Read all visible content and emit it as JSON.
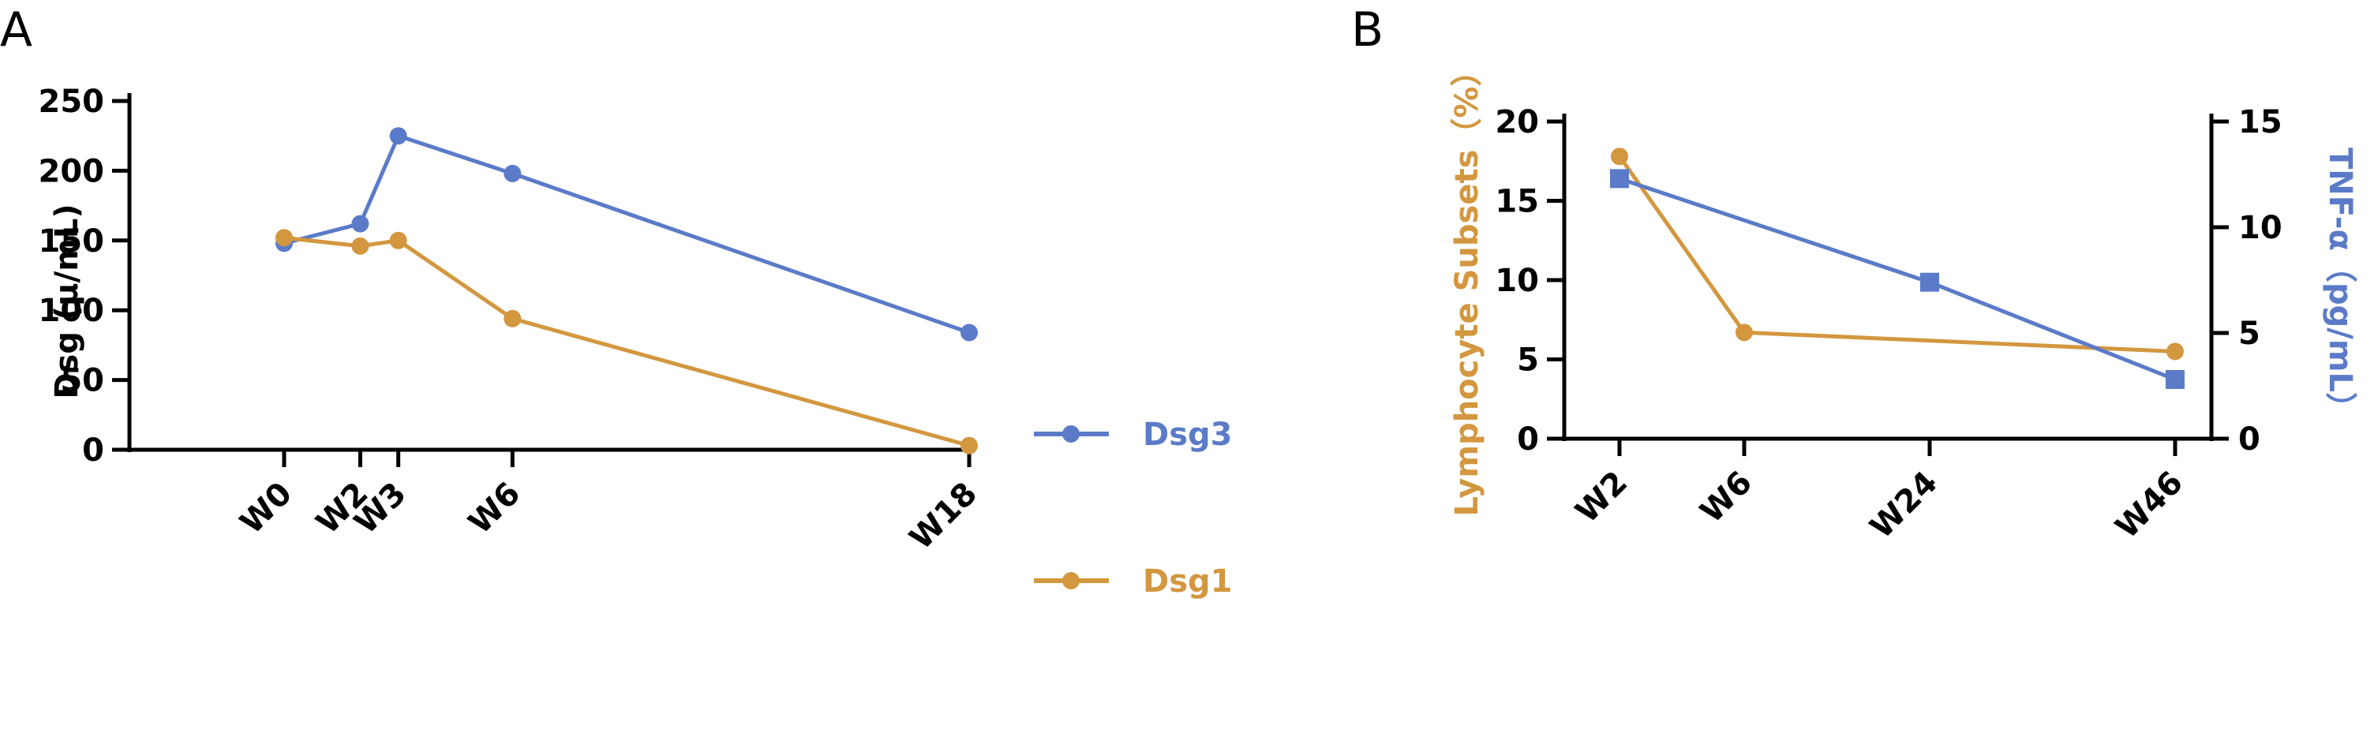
{
  "chart_data": [
    {
      "panel": "A",
      "type": "line",
      "x": [
        "W0",
        "W2",
        "W3",
        "W6",
        "W18"
      ],
      "x_weeks": [
        0,
        2,
        3,
        6,
        18
      ],
      "ylabel": "Dsg (μ/mL)",
      "ylim": [
        0,
        250
      ],
      "yticks": [
        "0",
        "50",
        "100",
        "150",
        "200",
        "250"
      ],
      "legend_placement": "right",
      "series": [
        {
          "name": "Dsg3",
          "color": "#5b7bc8",
          "marker": "circle",
          "values": [
            148,
            162,
            225,
            198,
            84
          ]
        },
        {
          "name": "Dsg1",
          "color": "#d3973f",
          "marker": "circle",
          "values": [
            152,
            146,
            150,
            94,
            3
          ]
        }
      ]
    },
    {
      "panel": "B",
      "type": "line",
      "x": [
        "W2",
        "W6",
        "W24",
        "W46"
      ],
      "ylabel_left": "Lymphocyte Subsets（%）",
      "ylabel_right": "TNF-α（pg/mL）",
      "ylim_left": [
        0,
        20
      ],
      "ylim_right": [
        0,
        15
      ],
      "yticks_left": [
        "0",
        "5",
        "10",
        "15",
        "20"
      ],
      "yticks_right": [
        "0",
        "5",
        "10",
        "15"
      ],
      "series": [
        {
          "name": "",
          "axis": "left",
          "color": "#d3973f",
          "marker": "circle",
          "values": [
            17.8,
            6.7,
            null,
            5.5
          ]
        },
        {
          "name": "",
          "axis": "right",
          "color": "#5b7bc8",
          "marker": "square",
          "values": [
            12.3,
            null,
            7.4,
            2.8
          ]
        }
      ]
    }
  ]
}
